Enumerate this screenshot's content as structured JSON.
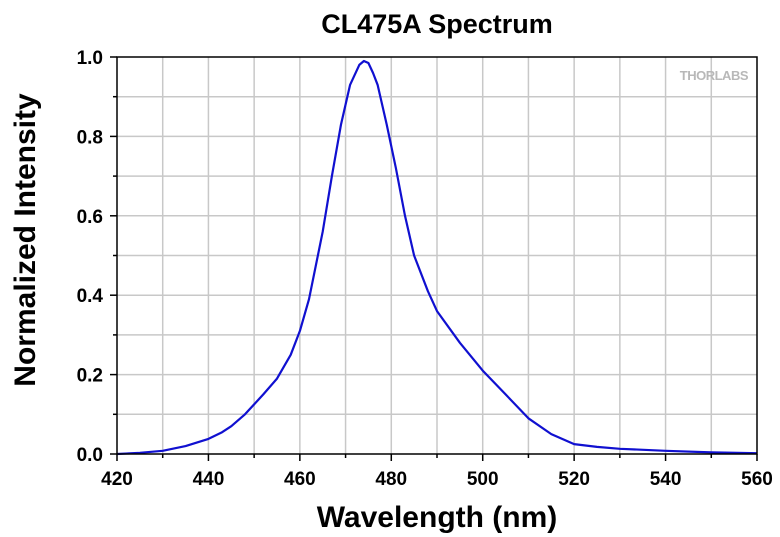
{
  "chart_data": {
    "type": "line",
    "title": "CL475A Spectrum",
    "xlabel": "Wavelength (nm)",
    "ylabel": "Normalized Intensity",
    "xlim": [
      420,
      560
    ],
    "ylim": [
      0,
      1.0
    ],
    "xticks": [
      420,
      440,
      460,
      480,
      500,
      520,
      540,
      560
    ],
    "xtick_labels": [
      "420",
      "440",
      "460",
      "480",
      "500",
      "520",
      "540",
      "560"
    ],
    "yticks": [
      0,
      0.2,
      0.4,
      0.6,
      0.8,
      1.0
    ],
    "ytick_labels": [
      "0.0",
      "0.2",
      "0.4",
      "0.6",
      "0.8",
      "1.0"
    ],
    "grid": true,
    "watermark": "THORLABS",
    "series": [
      {
        "name": "CL475A",
        "color": "#1010d0",
        "x": [
          420,
          425,
          430,
          435,
          440,
          443,
          445,
          448,
          450,
          452,
          455,
          458,
          460,
          462,
          465,
          467,
          469,
          471,
          473,
          474,
          475,
          476,
          477,
          479,
          481,
          483,
          485,
          488,
          490,
          495,
          500,
          505,
          510,
          515,
          520,
          525,
          530,
          540,
          550,
          560
        ],
        "y": [
          0.0,
          0.003,
          0.008,
          0.02,
          0.038,
          0.055,
          0.07,
          0.1,
          0.125,
          0.15,
          0.19,
          0.25,
          0.31,
          0.39,
          0.56,
          0.7,
          0.83,
          0.93,
          0.98,
          0.99,
          0.985,
          0.96,
          0.93,
          0.83,
          0.72,
          0.6,
          0.5,
          0.41,
          0.36,
          0.28,
          0.21,
          0.15,
          0.09,
          0.05,
          0.025,
          0.018,
          0.013,
          0.008,
          0.004,
          0.002
        ]
      }
    ]
  }
}
